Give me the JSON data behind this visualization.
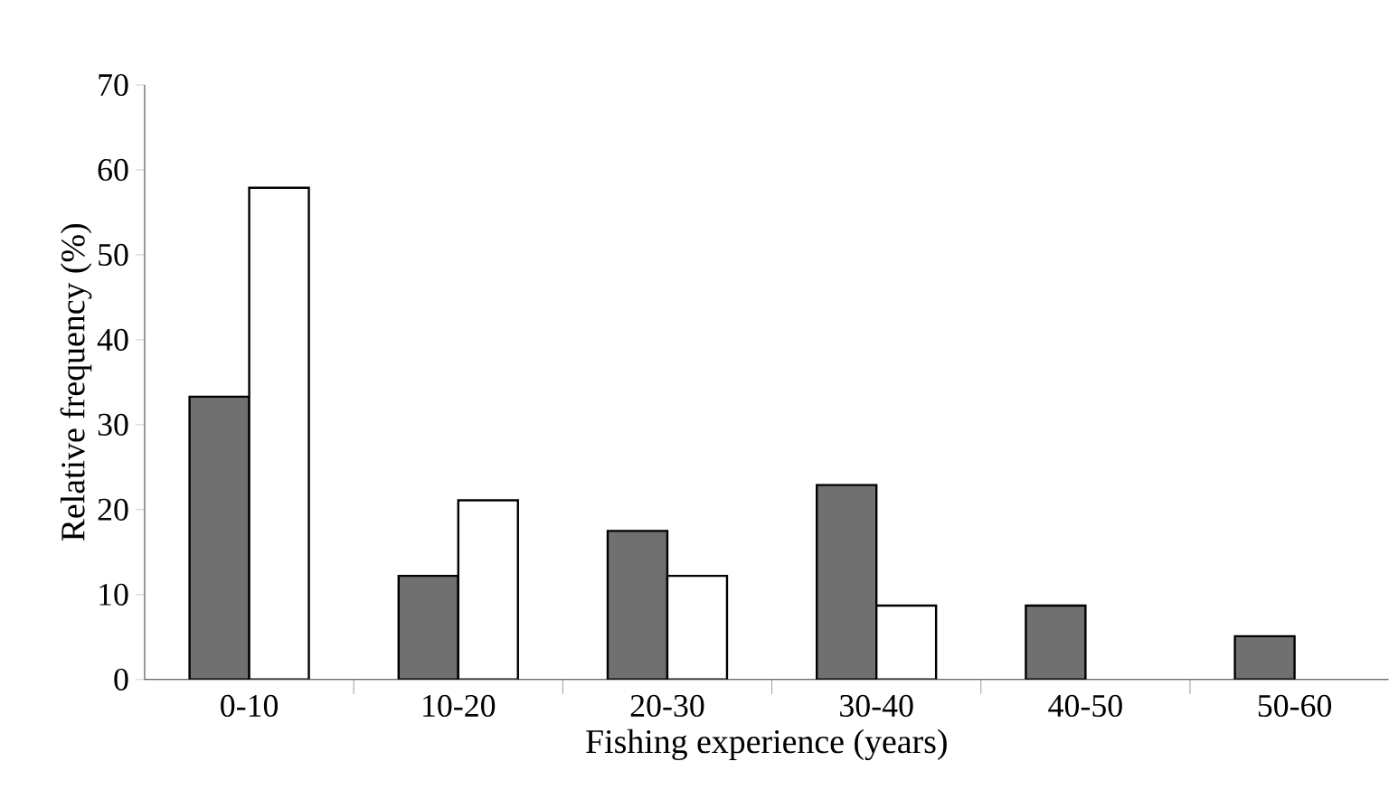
{
  "chart_data": {
    "type": "bar",
    "xlabel": "Fishing experience (years)",
    "ylabel": "Relative frequency (%)",
    "categories": [
      "0-10",
      "10-20",
      "20-30",
      "30-40",
      "40-50",
      "50-60"
    ],
    "series": [
      {
        "color": "#707070",
        "values": [
          33.3,
          12.2,
          17.5,
          22.9,
          8.7,
          5.1
        ]
      },
      {
        "color": "#ffffff",
        "values": [
          57.9,
          21.1,
          12.2,
          8.7,
          null,
          null
        ]
      }
    ],
    "ylim": [
      0,
      70
    ],
    "yticks": [
      0,
      10,
      20,
      30,
      40,
      50,
      60,
      70
    ]
  }
}
